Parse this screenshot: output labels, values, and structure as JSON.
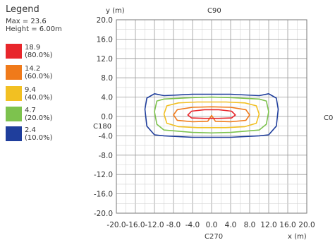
{
  "legend": {
    "title": "Legend",
    "max_label": "Max = 23.6",
    "height_label": "Height = 6.00m",
    "items": [
      {
        "value": "18.9",
        "percent": "(80.0%)",
        "color": "#e8262b"
      },
      {
        "value": "14.2",
        "percent": "(60.0%)",
        "color": "#f07a1a"
      },
      {
        "value": "9.4",
        "percent": "(40.0%)",
        "color": "#f2c022"
      },
      {
        "value": "4.7",
        "percent": "(20.0%)",
        "color": "#7dc24e"
      },
      {
        "value": "2.4",
        "percent": "(10.0%)",
        "color": "#1f3e9c"
      }
    ]
  },
  "chart_data": {
    "type": "line",
    "xlabel": "x (m)",
    "ylabel": "y (m)",
    "xlim": [
      -20,
      20
    ],
    "ylim": [
      -20,
      20
    ],
    "x_ticks": [
      "-20.0",
      "-16.0",
      "-12.0",
      "-8.0",
      "-4.0",
      "0.0",
      "4.0",
      "8.0",
      "12.0",
      "16.0",
      "20.0"
    ],
    "y_ticks": [
      "20.0",
      "16.0",
      "12.0",
      "8.0",
      "4.0",
      "0.0",
      "-4.0",
      "-8.0",
      "-12.0",
      "-16.0",
      "-20.0"
    ],
    "grid": true,
    "direction_labels": {
      "top": "C90",
      "bottom": "C270",
      "left": "C180",
      "right": "C0"
    },
    "series": [
      {
        "name": "2.4 (10.0%)",
        "color": "#1f3e9c",
        "x": [
          -14.0,
          -13.6,
          -12.0,
          -10.0,
          -4.0,
          0.0,
          4.0,
          10.0,
          12.0,
          13.6,
          14.0,
          13.6,
          12.0,
          10.0,
          4.0,
          0.0,
          -4.0,
          -10.0,
          -12.0,
          -13.6,
          -14.0
        ],
        "y": [
          1.5,
          3.8,
          4.7,
          4.3,
          4.6,
          4.6,
          4.6,
          4.3,
          4.7,
          3.8,
          1.5,
          -2.0,
          -3.8,
          -4.0,
          -4.3,
          -4.3,
          -4.3,
          -4.0,
          -3.8,
          -2.0,
          1.5
        ]
      },
      {
        "name": "4.7 (20.0%)",
        "color": "#7dc24e",
        "x": [
          -12.0,
          -11.5,
          -10.0,
          -4.0,
          0.0,
          4.0,
          10.0,
          11.5,
          12.0,
          11.5,
          10.0,
          4.0,
          0.0,
          -4.0,
          -10.0,
          -11.5,
          -12.0
        ],
        "y": [
          1.0,
          3.2,
          3.6,
          3.9,
          4.0,
          3.9,
          3.6,
          3.2,
          1.0,
          -1.6,
          -2.8,
          -3.3,
          -3.4,
          -3.3,
          -2.8,
          -1.6,
          1.0
        ]
      },
      {
        "name": "9.4 (40.0%)",
        "color": "#f2c022",
        "x": [
          -10.0,
          -9.4,
          -7.0,
          -3.0,
          0.0,
          3.0,
          7.0,
          9.4,
          10.0,
          9.4,
          7.0,
          3.0,
          0.0,
          -3.0,
          -7.0,
          -9.4,
          -10.0
        ],
        "y": [
          0.5,
          2.2,
          2.8,
          3.0,
          3.0,
          3.0,
          2.8,
          2.2,
          0.5,
          -1.4,
          -2.1,
          -2.3,
          -2.3,
          -2.3,
          -2.1,
          -1.4,
          0.5
        ]
      },
      {
        "name": "14.2 (60.0%)",
        "color": "#f07a1a",
        "x": [
          -8.0,
          -7.2,
          -4.0,
          0.0,
          4.0,
          7.2,
          8.0,
          7.2,
          4.0,
          0.8,
          0.0,
          -0.8,
          -4.0,
          -7.2,
          -8.0
        ],
        "y": [
          0.3,
          1.4,
          1.9,
          2.0,
          1.9,
          1.4,
          0.3,
          -0.8,
          -1.1,
          -1.0,
          0.2,
          -1.0,
          -1.1,
          -0.8,
          0.3
        ]
      },
      {
        "name": "18.9 (80.0%)",
        "color": "#e8262b",
        "x": [
          -5.0,
          -4.2,
          -1.5,
          0.0,
          1.5,
          4.2,
          5.0,
          4.2,
          1.5,
          0.0,
          -1.5,
          -4.2,
          -5.0
        ],
        "y": [
          0.3,
          1.1,
          1.4,
          1.4,
          1.4,
          1.1,
          0.3,
          -0.3,
          -0.4,
          -0.4,
          -0.4,
          -0.3,
          0.3
        ]
      }
    ]
  }
}
